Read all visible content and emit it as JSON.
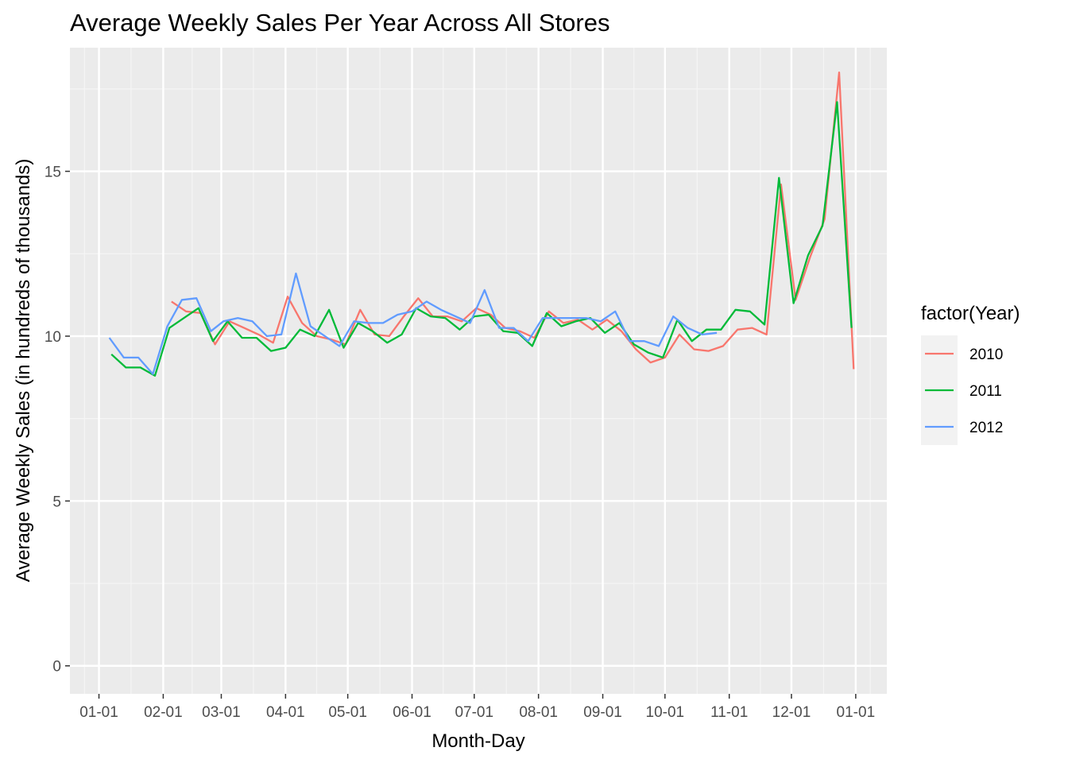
{
  "chart_data": {
    "type": "line",
    "title": "Average Weekly Sales Per Year Across All Stores",
    "xlabel": "Month-Day",
    "ylabel": "Average Weekly Sales (in hundreds of thousands)",
    "x_ticks": [
      "01-01",
      "02-01",
      "03-01",
      "04-01",
      "05-01",
      "06-01",
      "07-01",
      "08-01",
      "09-01",
      "10-01",
      "11-01",
      "12-01",
      "01-01"
    ],
    "y_ticks": [
      0,
      5,
      10,
      15
    ],
    "ylim": [
      -0.85,
      18.75
    ],
    "grid": true,
    "legend": {
      "title": "factor(Year)",
      "placement": "right"
    },
    "series": [
      {
        "name": "2010",
        "color": "#F8766D",
        "points": [
          [
            "02-05",
            11.05
          ],
          [
            "02-12",
            10.75
          ],
          [
            "02-19",
            10.7
          ],
          [
            "02-26",
            9.75
          ],
          [
            "03-05",
            10.45
          ],
          [
            "03-12",
            10.25
          ],
          [
            "03-19",
            10.05
          ],
          [
            "03-26",
            9.8
          ],
          [
            "04-02",
            11.2
          ],
          [
            "04-09",
            10.4
          ],
          [
            "04-16",
            10.0
          ],
          [
            "04-23",
            9.9
          ],
          [
            "04-30",
            9.75
          ],
          [
            "05-07",
            10.8
          ],
          [
            "05-14",
            10.05
          ],
          [
            "05-21",
            10.0
          ],
          [
            "05-28",
            10.6
          ],
          [
            "06-04",
            11.15
          ],
          [
            "06-11",
            10.6
          ],
          [
            "06-18",
            10.6
          ],
          [
            "06-25",
            10.45
          ],
          [
            "07-02",
            10.85
          ],
          [
            "07-09",
            10.65
          ],
          [
            "07-16",
            10.25
          ],
          [
            "07-23",
            10.15
          ],
          [
            "07-30",
            9.95
          ],
          [
            "08-06",
            10.75
          ],
          [
            "08-13",
            10.4
          ],
          [
            "08-20",
            10.5
          ],
          [
            "08-27",
            10.2
          ],
          [
            "09-03",
            10.5
          ],
          [
            "09-10",
            10.15
          ],
          [
            "09-17",
            9.6
          ],
          [
            "09-24",
            9.2
          ],
          [
            "10-01",
            9.35
          ],
          [
            "10-08",
            10.05
          ],
          [
            "10-15",
            9.6
          ],
          [
            "10-22",
            9.55
          ],
          [
            "10-29",
            9.7
          ],
          [
            "11-05",
            10.2
          ],
          [
            "11-12",
            10.25
          ],
          [
            "11-19",
            10.05
          ],
          [
            "11-26",
            14.6
          ],
          [
            "12-03",
            11.1
          ],
          [
            "12-10",
            12.4
          ],
          [
            "12-17",
            13.55
          ],
          [
            "12-24",
            18.0
          ],
          [
            "12-31",
            9.0
          ]
        ]
      },
      {
        "name": "2011",
        "color": "#00BA38",
        "points": [
          [
            "01-07",
            9.45
          ],
          [
            "01-14",
            9.05
          ],
          [
            "01-21",
            9.05
          ],
          [
            "01-28",
            8.8
          ],
          [
            "02-04",
            10.25
          ],
          [
            "02-11",
            10.55
          ],
          [
            "02-18",
            10.85
          ],
          [
            "02-25",
            9.85
          ],
          [
            "03-04",
            10.45
          ],
          [
            "03-11",
            9.95
          ],
          [
            "03-18",
            9.95
          ],
          [
            "03-25",
            9.55
          ],
          [
            "04-01",
            9.65
          ],
          [
            "04-08",
            10.2
          ],
          [
            "04-15",
            10.0
          ],
          [
            "04-22",
            10.8
          ],
          [
            "04-29",
            9.65
          ],
          [
            "05-06",
            10.4
          ],
          [
            "05-13",
            10.15
          ],
          [
            "05-20",
            9.8
          ],
          [
            "05-27",
            10.05
          ],
          [
            "06-03",
            10.85
          ],
          [
            "06-10",
            10.6
          ],
          [
            "06-17",
            10.55
          ],
          [
            "06-24",
            10.2
          ],
          [
            "07-01",
            10.6
          ],
          [
            "07-08",
            10.65
          ],
          [
            "07-15",
            10.15
          ],
          [
            "07-22",
            10.1
          ],
          [
            "07-29",
            9.7
          ],
          [
            "08-05",
            10.7
          ],
          [
            "08-12",
            10.3
          ],
          [
            "08-19",
            10.45
          ],
          [
            "08-26",
            10.55
          ],
          [
            "09-02",
            10.1
          ],
          [
            "09-09",
            10.4
          ],
          [
            "09-16",
            9.75
          ],
          [
            "09-23",
            9.5
          ],
          [
            "09-30",
            9.35
          ],
          [
            "10-07",
            10.5
          ],
          [
            "10-14",
            9.85
          ],
          [
            "10-21",
            10.2
          ],
          [
            "10-28",
            10.2
          ],
          [
            "11-04",
            10.8
          ],
          [
            "11-11",
            10.75
          ],
          [
            "11-18",
            10.35
          ],
          [
            "11-25",
            14.8
          ],
          [
            "12-02",
            11.0
          ],
          [
            "12-09",
            12.45
          ],
          [
            "12-16",
            13.35
          ],
          [
            "12-23",
            17.1
          ],
          [
            "12-30",
            10.25
          ]
        ]
      },
      {
        "name": "2012",
        "color": "#619CFF",
        "points": [
          [
            "01-06",
            9.95
          ],
          [
            "01-13",
            9.35
          ],
          [
            "01-20",
            9.35
          ],
          [
            "01-27",
            8.85
          ],
          [
            "02-03",
            10.3
          ],
          [
            "02-10",
            11.1
          ],
          [
            "02-17",
            11.15
          ],
          [
            "02-24",
            10.15
          ],
          [
            "03-02",
            10.45
          ],
          [
            "03-09",
            10.55
          ],
          [
            "03-16",
            10.45
          ],
          [
            "03-23",
            10.0
          ],
          [
            "03-30",
            10.05
          ],
          [
            "04-06",
            11.9
          ],
          [
            "04-13",
            10.3
          ],
          [
            "04-20",
            10.0
          ],
          [
            "04-27",
            9.7
          ],
          [
            "05-04",
            10.45
          ],
          [
            "05-11",
            10.4
          ],
          [
            "05-18",
            10.4
          ],
          [
            "05-25",
            10.65
          ],
          [
            "06-01",
            10.75
          ],
          [
            "06-08",
            11.05
          ],
          [
            "06-15",
            10.8
          ],
          [
            "06-22",
            10.6
          ],
          [
            "06-29",
            10.4
          ],
          [
            "07-06",
            11.4
          ],
          [
            "07-13",
            10.25
          ],
          [
            "07-20",
            10.25
          ],
          [
            "07-27",
            9.85
          ],
          [
            "08-03",
            10.55
          ],
          [
            "08-10",
            10.55
          ],
          [
            "08-17",
            10.55
          ],
          [
            "08-24",
            10.55
          ],
          [
            "08-31",
            10.45
          ],
          [
            "09-07",
            10.75
          ],
          [
            "09-14",
            9.85
          ],
          [
            "09-21",
            9.85
          ],
          [
            "09-28",
            9.7
          ],
          [
            "10-05",
            10.6
          ],
          [
            "10-12",
            10.25
          ],
          [
            "10-19",
            10.05
          ],
          [
            "10-26",
            10.1
          ]
        ]
      }
    ]
  }
}
